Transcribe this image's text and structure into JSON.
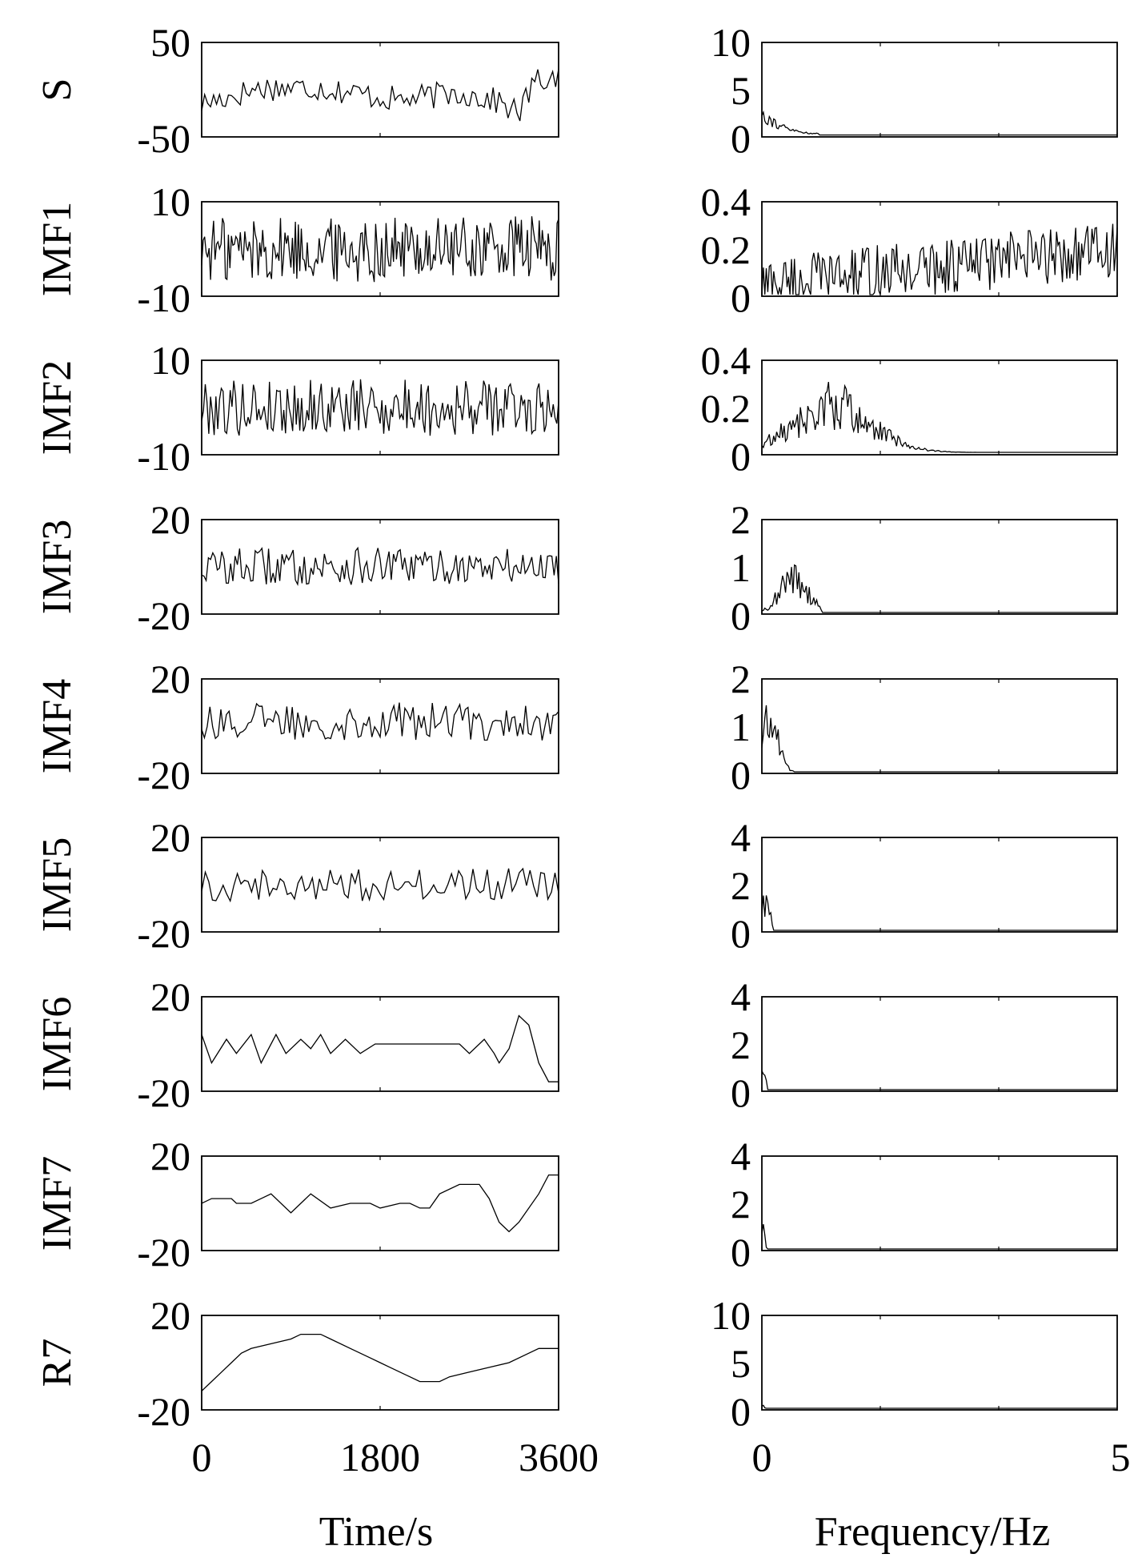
{
  "chart_data": {
    "type": "line",
    "layout": "grid of 9 rows x 2 columns",
    "time_axis": {
      "xlabel": "Time/s",
      "xlim": [
        0,
        3600
      ],
      "xticks": [
        "0",
        "1800",
        "3600"
      ]
    },
    "frequency_axis": {
      "xlabel": "Frequency/Hz",
      "xlim": [
        0,
        5
      ],
      "xticks": [
        "0",
        "5"
      ]
    },
    "rows": [
      {
        "label": "S",
        "time": {
          "ylim": [
            -50,
            50
          ],
          "yticks": [
            "50",
            "-50"
          ],
          "mean": -3,
          "amplitude": 14,
          "steps": 120,
          "trend": [
            [
              0,
              -12
            ],
            [
              600,
              5
            ],
            [
              1200,
              5
            ],
            [
              2000,
              -8
            ],
            [
              2600,
              0
            ],
            [
              3000,
              -10
            ],
            [
              3200,
              -22
            ],
            [
              3350,
              10
            ],
            [
              3600,
              18
            ]
          ]
        },
        "freq": {
          "ylim": [
            0,
            10
          ],
          "yticks": [
            "10",
            "5",
            "0"
          ],
          "peak_at": 0.05,
          "peak": 3.0,
          "decay_end": 0.8,
          "floor": 0.2
        }
      },
      {
        "label": "IMF1",
        "time": {
          "ylim": [
            -10,
            10
          ],
          "yticks": [
            "10",
            "-10"
          ],
          "mean": 0,
          "amplitude": 7,
          "steps": 240,
          "trend": [
            [
              0,
              0
            ],
            [
              3600,
              0
            ]
          ]
        },
        "freq": {
          "ylim": [
            0,
            0.4
          ],
          "yticks": [
            "0.4",
            "0.2",
            "0"
          ],
          "rising_noise": true,
          "start": 0.05,
          "end": 0.2,
          "jitter": 0.12
        }
      },
      {
        "label": "IMF2",
        "time": {
          "ylim": [
            -10,
            10
          ],
          "yticks": [
            "10",
            "-10"
          ],
          "mean": 0,
          "amplitude": 6,
          "steps": 200,
          "trend": [
            [
              0,
              0
            ],
            [
              3600,
              0
            ]
          ]
        },
        "freq": {
          "ylim": [
            0,
            0.4
          ],
          "yticks": [
            "0.4",
            "0.2",
            "0"
          ],
          "bump_center": 1.0,
          "bump_width": 0.55,
          "peak": 0.3,
          "cutoff": 3.3,
          "floor": 0.01
        }
      },
      {
        "label": "IMF3",
        "time": {
          "ylim": [
            -20,
            20
          ],
          "yticks": [
            "20",
            "-20"
          ],
          "mean": 0,
          "amplitude": 8,
          "steps": 160,
          "trend": [
            [
              0,
              0
            ],
            [
              3600,
              0
            ]
          ]
        },
        "freq": {
          "ylim": [
            0,
            2
          ],
          "yticks": [
            "2",
            "1",
            "0"
          ],
          "bump_center": 0.45,
          "bump_width": 0.2,
          "peak": 1.1,
          "cutoff": 0.85,
          "floor": 0.02
        }
      },
      {
        "label": "IMF4",
        "time": {
          "ylim": [
            -20,
            20
          ],
          "yticks": [
            "20",
            "-20"
          ],
          "mean": 2,
          "amplitude": 8,
          "steps": 130,
          "trend": [
            [
              0,
              0
            ],
            [
              3600,
              0
            ]
          ]
        },
        "freq": {
          "ylim": [
            0,
            2
          ],
          "yticks": [
            "2",
            "1",
            "0"
          ],
          "bump_center": 0.12,
          "bump_width": 0.12,
          "peak": 1.6,
          "cutoff": 0.45,
          "floor": 0.02
        }
      },
      {
        "label": "IMF5",
        "time": {
          "ylim": [
            -20,
            20
          ],
          "yticks": [
            "20",
            "-20"
          ],
          "mean": 0,
          "amplitude": 7,
          "steps": 100,
          "trend": [
            [
              0,
              0
            ],
            [
              3600,
              0
            ]
          ]
        },
        "freq": {
          "ylim": [
            0,
            4
          ],
          "yticks": [
            "4",
            "2",
            "0"
          ],
          "bump_center": 0.05,
          "bump_width": 0.06,
          "peak": 1.9,
          "cutoff": 0.16,
          "floor": 0.03
        }
      },
      {
        "label": "IMF6",
        "time": {
          "ylim": [
            -20,
            20
          ],
          "yticks": [
            "20",
            "-20"
          ],
          "smooth": [
            [
              0,
              4
            ],
            [
              100,
              -8
            ],
            [
              250,
              2
            ],
            [
              350,
              -4
            ],
            [
              500,
              4
            ],
            [
              600,
              -8
            ],
            [
              750,
              4
            ],
            [
              850,
              -4
            ],
            [
              1000,
              2
            ],
            [
              1100,
              -2
            ],
            [
              1200,
              4
            ],
            [
              1300,
              -4
            ],
            [
              1450,
              2
            ],
            [
              1600,
              -4
            ],
            [
              1750,
              0
            ],
            [
              2600,
              0
            ],
            [
              2700,
              -4
            ],
            [
              2850,
              2
            ],
            [
              2950,
              -4
            ],
            [
              3000,
              -8
            ],
            [
              3100,
              -2
            ],
            [
              3200,
              12
            ],
            [
              3300,
              8
            ],
            [
              3400,
              -8
            ],
            [
              3500,
              -16
            ],
            [
              3600,
              -16
            ]
          ]
        },
        "freq": {
          "ylim": [
            0,
            4
          ],
          "yticks": [
            "4",
            "2",
            "0"
          ],
          "bump_center": 0.02,
          "bump_width": 0.03,
          "peak": 1.8,
          "cutoff": 0.08,
          "floor": 0.05
        }
      },
      {
        "label": "IMF7",
        "time": {
          "ylim": [
            -20,
            20
          ],
          "yticks": [
            "20",
            "-20"
          ],
          "smooth": [
            [
              0,
              0
            ],
            [
              100,
              2
            ],
            [
              300,
              2
            ],
            [
              350,
              0
            ],
            [
              500,
              0
            ],
            [
              600,
              2
            ],
            [
              700,
              4
            ],
            [
              900,
              -4
            ],
            [
              1100,
              4
            ],
            [
              1300,
              -2
            ],
            [
              1500,
              0
            ],
            [
              1700,
              0
            ],
            [
              1800,
              -2
            ],
            [
              2000,
              0
            ],
            [
              2100,
              0
            ],
            [
              2200,
              -2
            ],
            [
              2300,
              -2
            ],
            [
              2400,
              4
            ],
            [
              2600,
              8
            ],
            [
              2800,
              8
            ],
            [
              2900,
              2
            ],
            [
              3000,
              -8
            ],
            [
              3100,
              -12
            ],
            [
              3200,
              -8
            ],
            [
              3400,
              4
            ],
            [
              3500,
              12
            ],
            [
              3600,
              12
            ]
          ]
        },
        "freq": {
          "ylim": [
            0,
            4
          ],
          "yticks": [
            "4",
            "2",
            "0"
          ],
          "bump_center": 0.02,
          "bump_width": 0.02,
          "peak": 1.9,
          "cutoff": 0.1,
          "floor": 0.05
        }
      },
      {
        "label": "R7",
        "time": {
          "ylim": [
            -20,
            20
          ],
          "yticks": [
            "20",
            "-20"
          ],
          "smooth": [
            [
              0,
              -12
            ],
            [
              100,
              -8
            ],
            [
              200,
              -4
            ],
            [
              300,
              0
            ],
            [
              400,
              4
            ],
            [
              500,
              6
            ],
            [
              700,
              8
            ],
            [
              900,
              10
            ],
            [
              1000,
              12
            ],
            [
              1200,
              12
            ],
            [
              1300,
              10
            ],
            [
              1500,
              6
            ],
            [
              1600,
              4
            ],
            [
              1700,
              2
            ],
            [
              1800,
              0
            ],
            [
              1900,
              -2
            ],
            [
              2000,
              -4
            ],
            [
              2100,
              -6
            ],
            [
              2200,
              -8
            ],
            [
              2400,
              -8
            ],
            [
              2500,
              -6
            ],
            [
              2700,
              -4
            ],
            [
              2900,
              -2
            ],
            [
              3100,
              0
            ],
            [
              3300,
              4
            ],
            [
              3400,
              6
            ],
            [
              3600,
              6
            ]
          ]
        },
        "freq": {
          "ylim": [
            0,
            10
          ],
          "yticks": [
            "10",
            "5",
            "0"
          ],
          "bump_center": 0.01,
          "bump_width": 0.02,
          "peak": 0.6,
          "cutoff": 0.05,
          "floor": 0.1
        }
      }
    ]
  }
}
